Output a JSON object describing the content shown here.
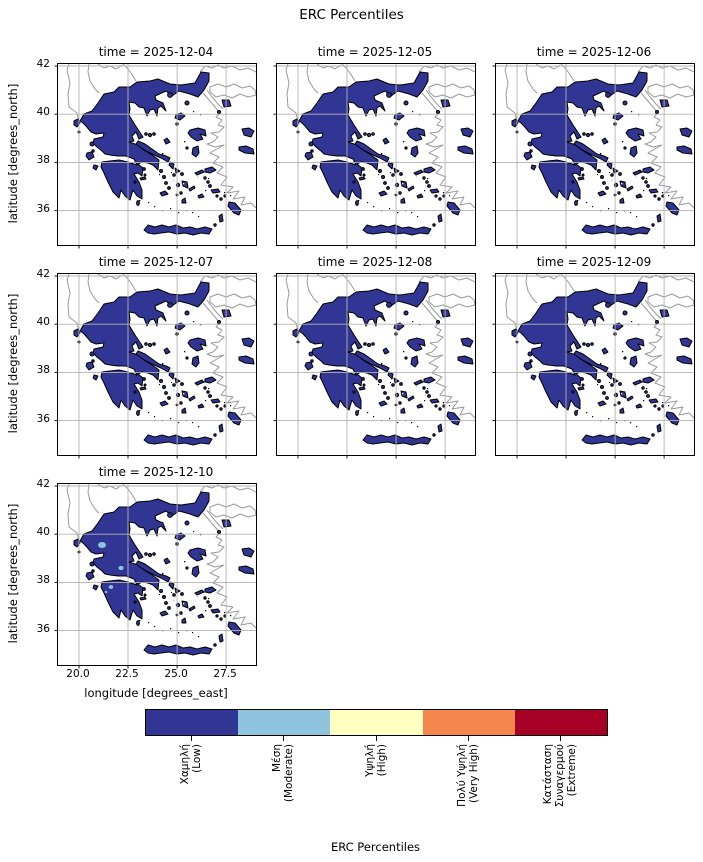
{
  "figure": {
    "title": "ERC Percentiles"
  },
  "facets": [
    {
      "title": "time = 2025-12-04"
    },
    {
      "title": "time = 2025-12-05"
    },
    {
      "title": "time = 2025-12-06"
    },
    {
      "title": "time = 2025-12-07"
    },
    {
      "title": "time = 2025-12-08"
    },
    {
      "title": "time = 2025-12-09"
    },
    {
      "title": "time = 2025-12-10"
    }
  ],
  "axes": {
    "x_label": "longitude [degrees_east]",
    "y_label": "latitude [degrees_north]",
    "x_ticks": [
      "20.0",
      "22.5",
      "25.0",
      "27.5"
    ],
    "y_ticks": [
      "42",
      "40",
      "38",
      "36"
    ]
  },
  "colorbar": {
    "label": "ERC Percentiles",
    "categories": [
      {
        "name": "Χαμηλή",
        "subtitle": "(Low)",
        "label_lines": [
          "Χαμηλή",
          "(Low)"
        ],
        "color": "#313695"
      },
      {
        "name": "Μέση",
        "subtitle": "(Moderate)",
        "label_lines": [
          "Μέση",
          "(Moderate)"
        ],
        "color": "#8ec4de"
      },
      {
        "name": "Υψηλή",
        "subtitle": "(High)",
        "label_lines": [
          "Υψηλή",
          "(High)"
        ],
        "color": "#ffffbf"
      },
      {
        "name": "Πολύ Υψηλή",
        "subtitle": "(Very High)",
        "label_lines": [
          "Πολύ Υψηλή",
          "(Very High)"
        ],
        "color": "#f4874e"
      },
      {
        "name": "Κατάσταση Συναγερμού",
        "subtitle": "(Extreme)",
        "label_lines": [
          "Κατάσταση",
          "Συναγερμού",
          "(Extreme)"
        ],
        "color": "#a50026"
      }
    ]
  },
  "map_colors": {
    "land_low": "#313695",
    "land_moderate": "#8ec4de",
    "outline": "#000000",
    "neighbor_coast": "#9a9a9a",
    "grid": "#b3b3b3"
  },
  "chart_data": {
    "type": "heatmap",
    "subtype": "faceted categorical choropleth map of Greece",
    "title": "ERC Percentiles",
    "facets": [
      "2025-12-04",
      "2025-12-05",
      "2025-12-06",
      "2025-12-07",
      "2025-12-08",
      "2025-12-09",
      "2025-12-10"
    ],
    "x": {
      "label": "longitude [degrees_east]",
      "range": [
        18.93,
        29.03
      ],
      "ticks": [
        20.0,
        22.5,
        25.0,
        27.5
      ]
    },
    "y": {
      "label": "latitude [degrees_north]",
      "range": [
        34.58,
        42.08
      ],
      "ticks": [
        36,
        38,
        40,
        42
      ]
    },
    "grid": true,
    "legend_position": "horizontal colorbar at bottom",
    "categories": [
      "Χαμηλή (Low)",
      "Μέση (Moderate)",
      "Υψηλή (High)",
      "Πολύ Υψηλή (Very High)",
      "Κατάσταση Συναγερμού (Extreme)"
    ],
    "values_summary": "On all seven forecast dates virtually the whole Greek territory is classified in the lowest class Χαμηλή (Low, dark blue). The 2025-12-10 facet additionally shows a few small Μέση (Moderate, light blue) patches in western/central mainland Greece and the northern Peloponnese. Neighboring countries' coastlines/borders are drawn in grey; Greek land is outlined in black."
  }
}
